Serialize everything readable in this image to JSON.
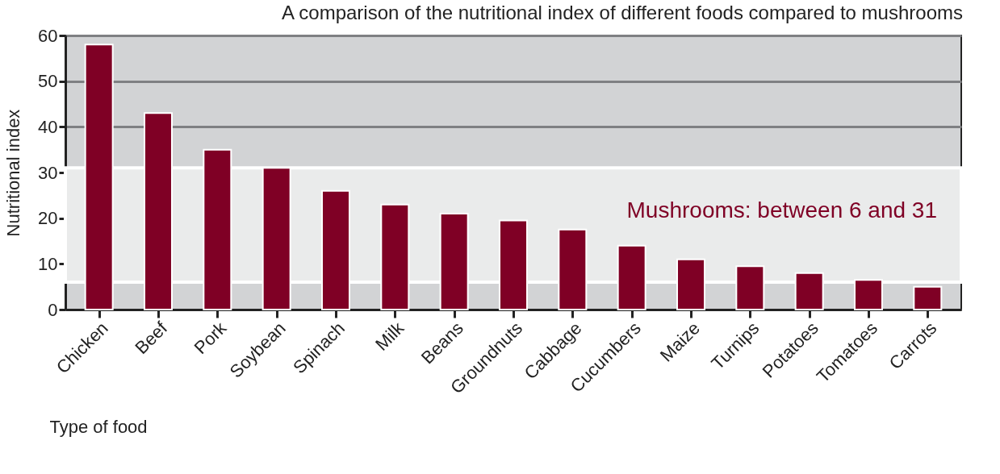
{
  "chart_data": {
    "type": "bar",
    "title": "A comparison of the nutritional index of different foods compared to mushrooms",
    "xlabel": "Type of food",
    "ylabel": "Nutritional index",
    "categories": [
      "Chicken",
      "Beef",
      "Pork",
      "Soybean",
      "Spinach",
      "Milk",
      "Beans",
      "Groundnuts",
      "Cabbage",
      "Cucumbers",
      "Maize",
      "Turnips",
      "Potatoes",
      "Tomatoes",
      "Carrots"
    ],
    "values": [
      58,
      43,
      35,
      31,
      26,
      23,
      21,
      19.5,
      17.5,
      14,
      11,
      9.5,
      8,
      6.5,
      5
    ],
    "color": "#7f0025",
    "ylim": [
      0,
      60
    ],
    "yticks": [
      0,
      10,
      20,
      30,
      40,
      50,
      60
    ],
    "grid": "y",
    "bands": [
      {
        "axis": "y",
        "from": 6,
        "to": 31,
        "label": "Mushrooms: between 6 and 31",
        "color": "#eaebeb"
      }
    ]
  }
}
